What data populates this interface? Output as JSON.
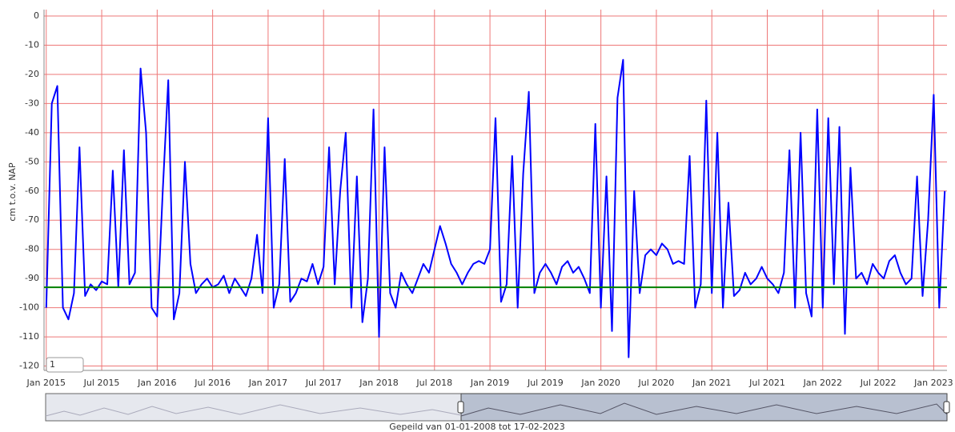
{
  "chart_data": {
    "type": "line",
    "y_label": "cm t.o.v. NAP",
    "footer": "Gepeild van 01-01-2008 tot 17-02-2023",
    "range_input": "1",
    "series": [
      {
        "color": "#0000ff",
        "x": [
          2015,
          2015.05,
          2015.1,
          2015.15,
          2015.2,
          2015.25,
          2015.3,
          2015.35,
          2015.4,
          2015.45,
          2015.5,
          2015.55,
          2015.6,
          2015.65,
          2015.7,
          2015.75,
          2015.8,
          2015.85,
          2015.9,
          2015.95,
          2016,
          2016.05,
          2016.1,
          2016.15,
          2016.2,
          2016.25,
          2016.3,
          2016.35,
          2016.4,
          2016.45,
          2016.5,
          2016.55,
          2016.6,
          2016.65,
          2016.7,
          2016.75,
          2016.8,
          2016.85,
          2016.9,
          2016.95,
          2017,
          2017.05,
          2017.1,
          2017.15,
          2017.2,
          2017.25,
          2017.3,
          2017.35,
          2017.4,
          2017.45,
          2017.5,
          2017.55,
          2017.6,
          2017.65,
          2017.7,
          2017.75,
          2017.8,
          2017.85,
          2017.9,
          2017.95,
          2018,
          2018.05,
          2018.1,
          2018.15,
          2018.2,
          2018.25,
          2018.3,
          2018.35,
          2018.4,
          2018.45,
          2018.5,
          2018.55,
          2018.6,
          2018.65,
          2018.7,
          2018.75,
          2018.8,
          2018.85,
          2018.9,
          2018.95,
          2019,
          2019.05,
          2019.1,
          2019.15,
          2019.2,
          2019.25,
          2019.3,
          2019.35,
          2019.4,
          2019.45,
          2019.5,
          2019.55,
          2019.6,
          2019.65,
          2019.7,
          2019.75,
          2019.8,
          2019.85,
          2019.9,
          2019.95,
          2020,
          2020.05,
          2020.1,
          2020.15,
          2020.2,
          2020.25,
          2020.3,
          2020.35,
          2020.4,
          2020.45,
          2020.5,
          2020.55,
          2020.6,
          2020.65,
          2020.7,
          2020.75,
          2020.8,
          2020.85,
          2020.9,
          2020.95,
          2021,
          2021.05,
          2021.1,
          2021.15,
          2021.2,
          2021.25,
          2021.3,
          2021.35,
          2021.4,
          2021.45,
          2021.5,
          2021.55,
          2021.6,
          2021.65,
          2021.7,
          2021.75,
          2021.8,
          2021.85,
          2021.9,
          2021.95,
          2022,
          2022.05,
          2022.1,
          2022.15,
          2022.2,
          2022.25,
          2022.3,
          2022.35,
          2022.4,
          2022.45,
          2022.5,
          2022.55,
          2022.6,
          2022.65,
          2022.7,
          2022.75,
          2022.8,
          2022.85,
          2022.9,
          2022.95,
          2023,
          2023.05,
          2023.1
        ],
        "values": [
          -100,
          -30,
          -24,
          -100,
          -104,
          -95,
          -45,
          -96,
          -92,
          -94,
          -91,
          -92,
          -53,
          -93,
          -46,
          -92,
          -88,
          -18,
          -40,
          -100,
          -103,
          -60,
          -22,
          -104,
          -95,
          -50,
          -85,
          -95,
          -92,
          -90,
          -93,
          -92,
          -89,
          -95,
          -90,
          -93,
          -96,
          -90,
          -75,
          -95,
          -35,
          -100,
          -92,
          -49,
          -98,
          -95,
          -90,
          -91,
          -85,
          -92,
          -86,
          -45,
          -92,
          -60,
          -40,
          -100,
          -55,
          -105,
          -90,
          -32,
          -110,
          -45,
          -95,
          -100,
          -88,
          -92,
          -95,
          -90,
          -85,
          -88,
          -80,
          -72,
          -78,
          -85,
          -88,
          -92,
          -88,
          -85,
          -84,
          -85,
          -80,
          -35,
          -98,
          -92,
          -48,
          -100,
          -54,
          -26,
          -95,
          -88,
          -85,
          -88,
          -92,
          -86,
          -84,
          -88,
          -86,
          -90,
          -95,
          -37,
          -100,
          -55,
          -108,
          -28,
          -15,
          -117,
          -60,
          -95,
          -82,
          -80,
          -82,
          -78,
          -80,
          -85,
          -84,
          -85,
          -48,
          -100,
          -92,
          -29,
          -95,
          -40,
          -100,
          -64,
          -96,
          -94,
          -88,
          -92,
          -90,
          -86,
          -90,
          -92,
          -95,
          -88,
          -46,
          -100,
          -40,
          -95,
          -103,
          -32,
          -100,
          -35,
          -92,
          -38,
          -109,
          -52,
          -90,
          -88,
          -92,
          -85,
          -88,
          -90,
          -84,
          -82,
          -88,
          -92,
          -90,
          -55,
          -96,
          -70,
          -27,
          -100,
          -60
        ]
      }
    ],
    "reference_line": {
      "value": -93,
      "color": "#008000"
    },
    "xlim": [
      2014.98,
      2023.12
    ],
    "ylim": [
      -121.5,
      2.2
    ],
    "yticks": [
      0,
      -10,
      -20,
      -30,
      -40,
      -50,
      -60,
      -70,
      -80,
      -90,
      -100,
      -110,
      -120
    ],
    "xticks": [
      {
        "value": 2015,
        "label": "Jan 2015"
      },
      {
        "value": 2015.5,
        "label": "Jul 2015"
      },
      {
        "value": 2016,
        "label": "Jan 2016"
      },
      {
        "value": 2016.5,
        "label": "Jul 2016"
      },
      {
        "value": 2017,
        "label": "Jan 2017"
      },
      {
        "value": 2017.5,
        "label": "Jul 2017"
      },
      {
        "value": 2018,
        "label": "Jan 2018"
      },
      {
        "value": 2018.5,
        "label": "Jul 2018"
      },
      {
        "value": 2019,
        "label": "Jan 2019"
      },
      {
        "value": 2019.5,
        "label": "Jul 2019"
      },
      {
        "value": 2020,
        "label": "Jan 2020"
      },
      {
        "value": 2020.5,
        "label": "Jul 2020"
      },
      {
        "value": 2021,
        "label": "Jan 2021"
      },
      {
        "value": 2021.5,
        "label": "Jul 2021"
      },
      {
        "value": 2022,
        "label": "Jan 2022"
      },
      {
        "value": 2022.5,
        "label": "Jul 2022"
      },
      {
        "value": 2023,
        "label": "Jan 2023"
      }
    ],
    "grid": true,
    "grid_color": "#ee7777"
  }
}
